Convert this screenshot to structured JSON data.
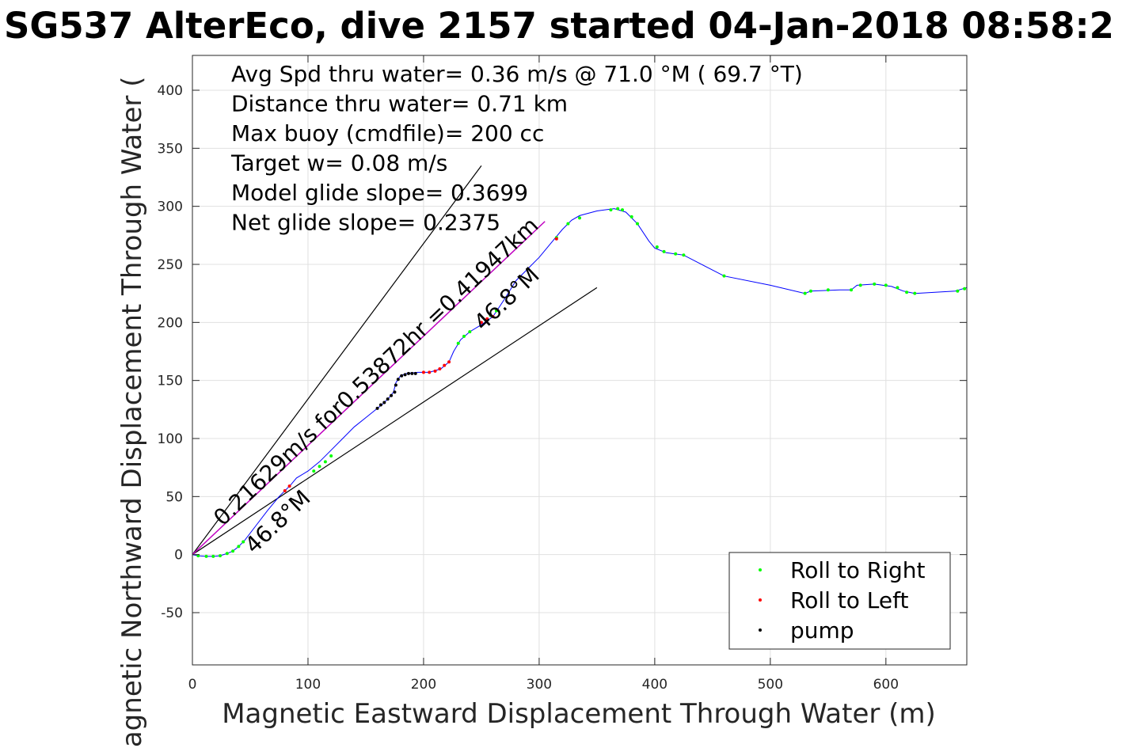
{
  "colors": {
    "track": "#0000ff",
    "roll_right": "#00ff00",
    "roll_left": "#ff0000",
    "pump": "#000000",
    "glide_lines": "#000000",
    "segment_line": "#c000c0",
    "grid": "#e0e0e0",
    "axes": "#262626"
  },
  "chart_data": {
    "type": "scatter",
    "title": "SG537 AlterEco, dive 2157 started 04-Jan-2018 08:58:2",
    "xlabel": "Magnetic Eastward Displacement Through Water (m)",
    "ylabel": "Magnetic Northward Displacement Through Water (",
    "xlim": [
      0,
      670
    ],
    "ylim": [
      -95,
      430
    ],
    "x_ticks": [
      0,
      100,
      200,
      300,
      400,
      500,
      600
    ],
    "y_ticks": [
      -50,
      0,
      50,
      100,
      150,
      200,
      250,
      300,
      350,
      400
    ],
    "x_tick_labels": [
      "0",
      "100",
      "200",
      "300",
      "400",
      "500",
      "600"
    ],
    "y_tick_labels": [
      "-50",
      "0",
      "50",
      "100",
      "150",
      "200",
      "250",
      "300",
      "350",
      "400"
    ],
    "grid": true,
    "legend_position": "bottom-right",
    "legend": [
      {
        "label": "Roll to Right",
        "marker": "roll_right"
      },
      {
        "label": "Roll to Left",
        "marker": "roll_left"
      },
      {
        "label": "pump",
        "marker": "pump"
      }
    ],
    "text_block": [
      "Avg Spd thru water=  0.36 m/s @  71.0 °M ( 69.7 °T)",
      "Distance thru water=  0.71 km",
      "Max buoy (cmdfile)= 200 cc",
      "Target w= 0.08 m/s",
      "Model glide slope= 0.3699",
      "Net glide slope= 0.2375"
    ],
    "annotations": {
      "segment": "0.21629m/s for0.53872hr =0.41947km",
      "heading_a": "46.8°M",
      "heading_b": "46.8°M"
    },
    "track": [
      [
        0,
        0
      ],
      [
        5,
        -1
      ],
      [
        12,
        -1.5
      ],
      [
        18,
        -1.5
      ],
      [
        24,
        -1
      ],
      [
        30,
        1
      ],
      [
        35,
        3
      ],
      [
        40,
        7
      ],
      [
        45,
        12
      ],
      [
        55,
        25
      ],
      [
        65,
        38
      ],
      [
        75,
        50
      ],
      [
        80,
        55
      ],
      [
        85,
        60
      ],
      [
        90,
        66
      ],
      [
        100,
        72
      ],
      [
        110,
        80
      ],
      [
        120,
        90
      ],
      [
        130,
        100
      ],
      [
        140,
        110
      ],
      [
        150,
        118
      ],
      [
        160,
        126
      ],
      [
        165,
        130
      ],
      [
        170,
        135
      ],
      [
        174,
        140
      ],
      [
        176,
        148
      ],
      [
        180,
        154
      ],
      [
        185,
        156
      ],
      [
        195,
        157
      ],
      [
        205,
        157
      ],
      [
        215,
        160
      ],
      [
        222,
        166
      ],
      [
        226,
        175
      ],
      [
        232,
        185
      ],
      [
        240,
        192
      ],
      [
        250,
        198
      ],
      [
        260,
        205
      ],
      [
        270,
        220
      ],
      [
        280,
        236
      ],
      [
        290,
        246
      ],
      [
        300,
        256
      ],
      [
        310,
        268
      ],
      [
        320,
        280
      ],
      [
        328,
        288
      ],
      [
        335,
        292
      ],
      [
        350,
        296
      ],
      [
        365,
        298
      ],
      [
        375,
        295
      ],
      [
        385,
        285
      ],
      [
        395,
        270
      ],
      [
        400,
        264
      ],
      [
        410,
        260
      ],
      [
        425,
        258
      ],
      [
        460,
        240
      ],
      [
        500,
        232
      ],
      [
        530,
        225
      ],
      [
        535,
        227
      ],
      [
        560,
        228
      ],
      [
        570,
        228
      ],
      [
        575,
        232
      ],
      [
        590,
        233
      ],
      [
        605,
        231
      ],
      [
        615,
        227
      ],
      [
        625,
        225
      ],
      [
        660,
        227
      ],
      [
        670,
        230
      ]
    ],
    "roll_right_points": [
      [
        5,
        -1
      ],
      [
        12,
        -1.5
      ],
      [
        18,
        -1.5
      ],
      [
        24,
        -1
      ],
      [
        30,
        1
      ],
      [
        35,
        3
      ],
      [
        40,
        7
      ],
      [
        44,
        11
      ],
      [
        105,
        72
      ],
      [
        110,
        76
      ],
      [
        115,
        80
      ],
      [
        120,
        85
      ],
      [
        230,
        182
      ],
      [
        235,
        188
      ],
      [
        240,
        192
      ],
      [
        258,
        206
      ],
      [
        263,
        210
      ],
      [
        315,
        273
      ],
      [
        325,
        285
      ],
      [
        335,
        290
      ],
      [
        362,
        297
      ],
      [
        368,
        298
      ],
      [
        372,
        297
      ],
      [
        380,
        291
      ],
      [
        385,
        285
      ],
      [
        402,
        265
      ],
      [
        408,
        261
      ],
      [
        418,
        259
      ],
      [
        425,
        258
      ],
      [
        460,
        240
      ],
      [
        530,
        225
      ],
      [
        535,
        227
      ],
      [
        550,
        228
      ],
      [
        570,
        228
      ],
      [
        578,
        232
      ],
      [
        590,
        233
      ],
      [
        600,
        232
      ],
      [
        610,
        230
      ],
      [
        618,
        226
      ],
      [
        625,
        225
      ],
      [
        662,
        227
      ],
      [
        668,
        229
      ]
    ],
    "roll_left_points": [
      [
        80,
        55
      ],
      [
        84,
        59
      ],
      [
        200,
        157
      ],
      [
        205,
        157
      ],
      [
        210,
        158
      ],
      [
        214,
        160
      ],
      [
        218,
        163
      ],
      [
        222,
        166
      ],
      [
        250,
        200
      ],
      [
        255,
        203
      ],
      [
        260,
        205
      ],
      [
        315,
        272
      ]
    ],
    "pump_points": [
      [
        160,
        126
      ],
      [
        163,
        129
      ],
      [
        166,
        131
      ],
      [
        169,
        134
      ],
      [
        172,
        137
      ],
      [
        175,
        140
      ],
      [
        176,
        146
      ],
      [
        178,
        151
      ],
      [
        181,
        154
      ],
      [
        184,
        155
      ],
      [
        187,
        156
      ],
      [
        190,
        156
      ],
      [
        193,
        156
      ]
    ],
    "glide_lines": [
      {
        "from": [
          0,
          0
        ],
        "to": [
          250,
          335
        ]
      },
      {
        "from": [
          0,
          0
        ],
        "to": [
          350,
          230
        ]
      }
    ],
    "segment_line": {
      "from": [
        0,
        0
      ],
      "to": [
        305,
        287
      ]
    }
  }
}
